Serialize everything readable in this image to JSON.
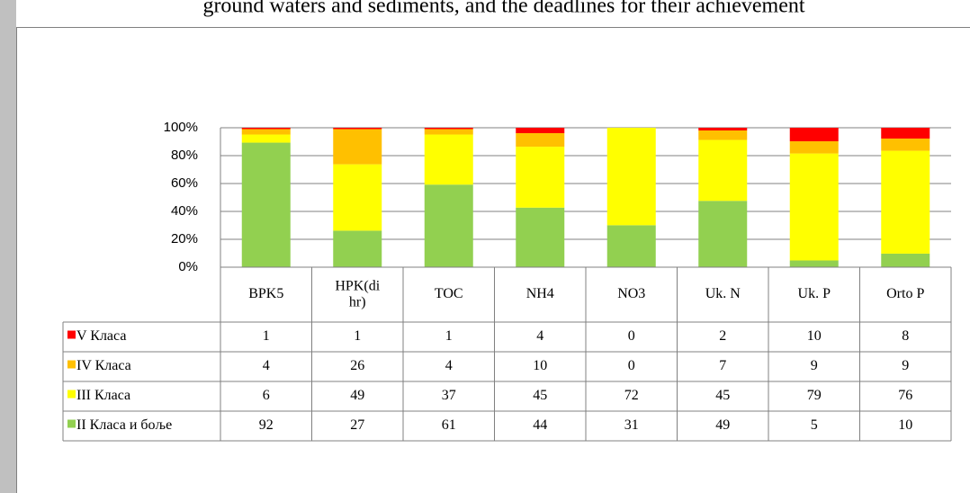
{
  "chart_data": {
    "type": "stacked_bar_100",
    "caption": "ground waters and sediments, and the deadlines for their achievement",
    "categories": [
      "BPK5",
      "HPK(di\nhr)",
      "TOC",
      "NH4",
      "NO3",
      "Uk. N",
      "Uk. P",
      "Orto P"
    ],
    "series": [
      {
        "name": "V Класа",
        "color": "#ff0000",
        "values": [
          1,
          1,
          1,
          4,
          0,
          2,
          10,
          8
        ]
      },
      {
        "name": "IV Класа",
        "color": "#ffc000",
        "values": [
          4,
          26,
          4,
          10,
          0,
          7,
          9,
          9
        ]
      },
      {
        "name": "III Класа",
        "color": "#ffff00",
        "values": [
          6,
          49,
          37,
          45,
          72,
          45,
          79,
          76
        ]
      },
      {
        "name": "II Класа и боље",
        "color": "#92d050",
        "values": [
          92,
          27,
          61,
          44,
          31,
          49,
          5,
          10
        ]
      }
    ],
    "ylim": [
      0,
      100
    ],
    "yticks": [
      {
        "value": 0,
        "label": "0%"
      },
      {
        "value": 20,
        "label": "20%"
      },
      {
        "value": 40,
        "label": "40%"
      },
      {
        "value": 60,
        "label": "60%"
      },
      {
        "value": 80,
        "label": "80%"
      },
      {
        "value": 100,
        "label": "100%"
      }
    ],
    "grid": true
  }
}
